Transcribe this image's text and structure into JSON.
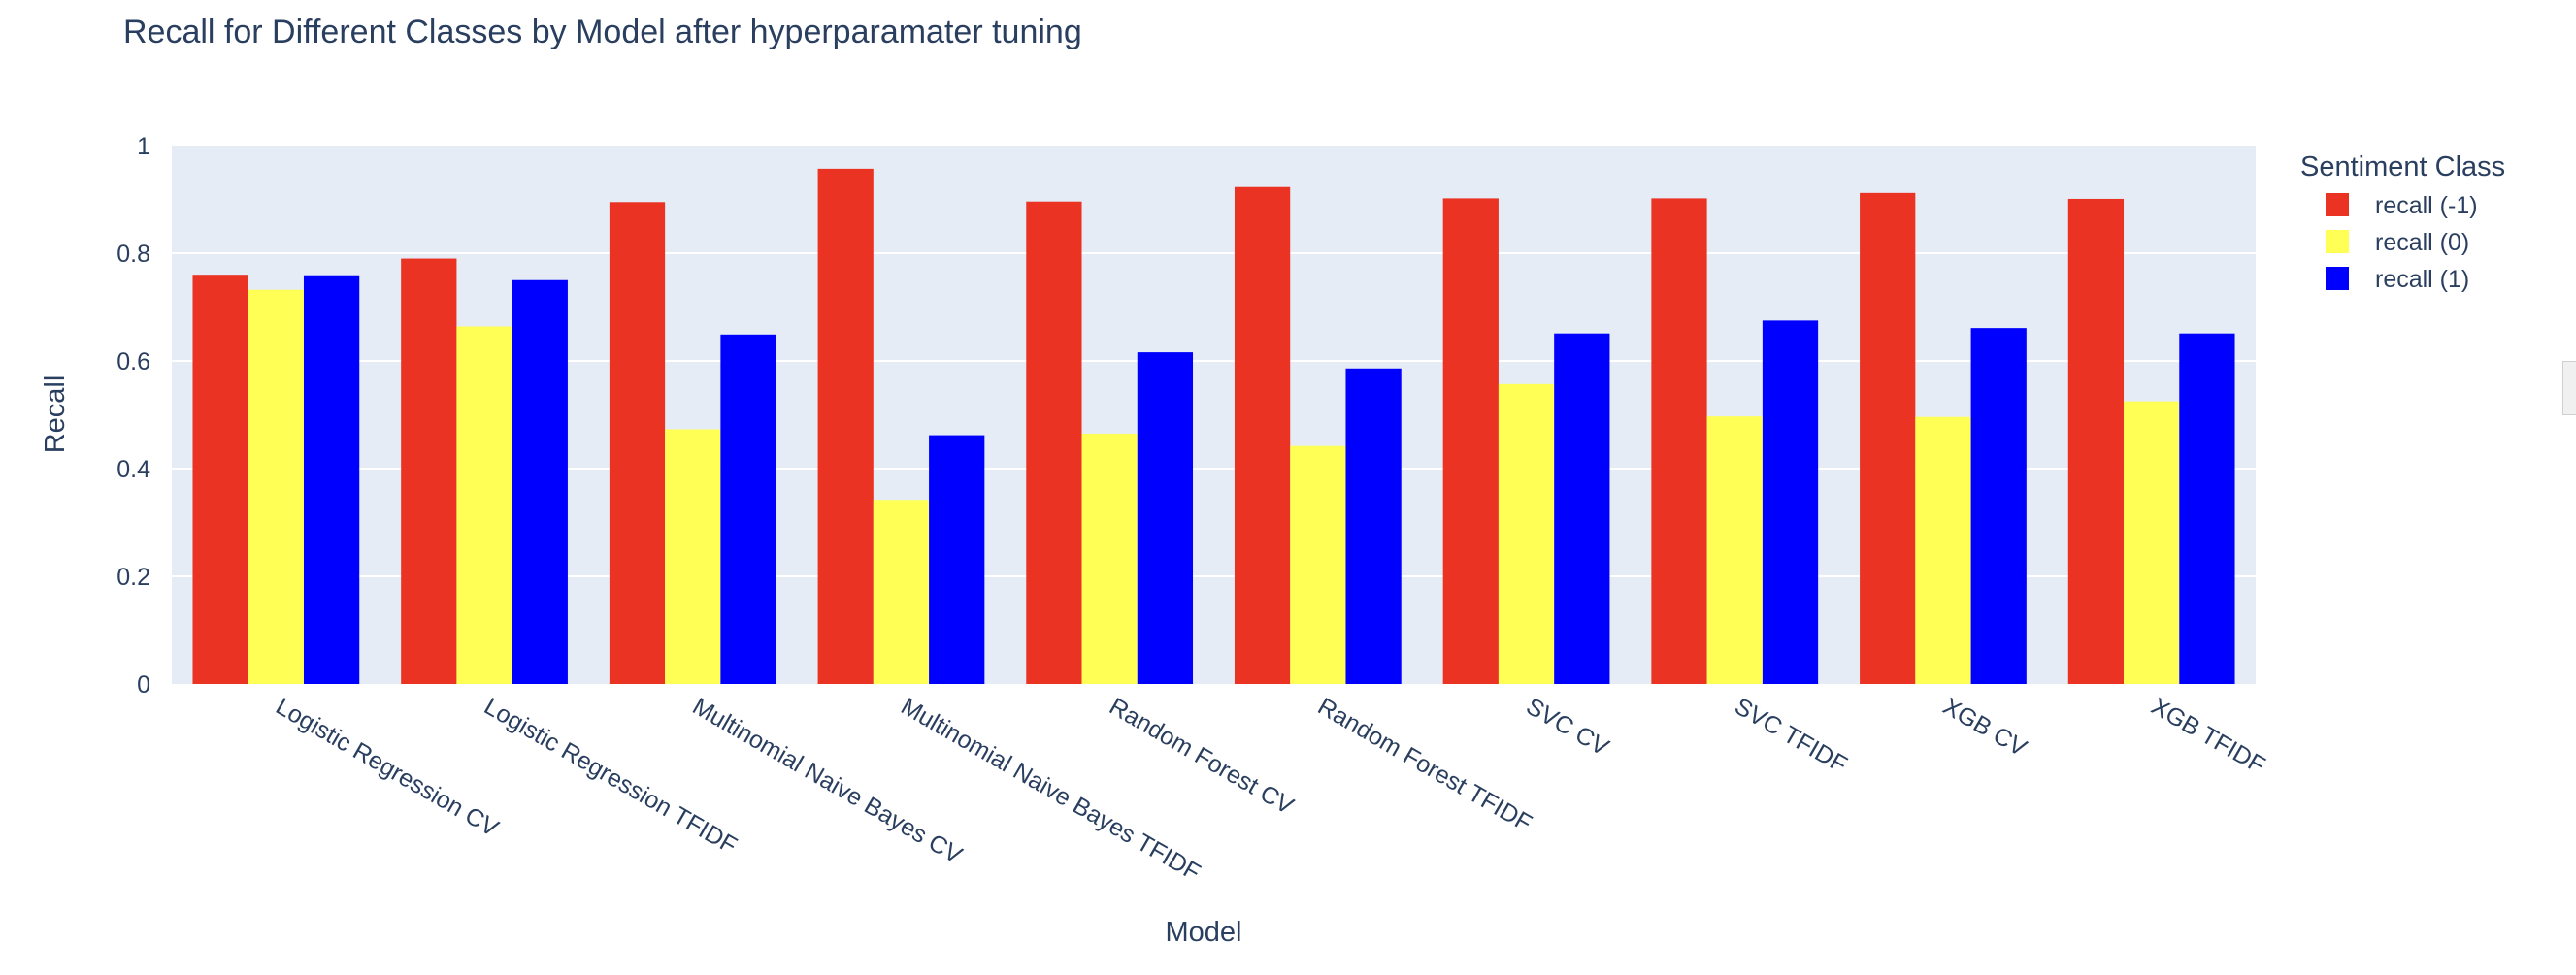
{
  "chart_data": {
    "type": "bar",
    "title": "Recall for Different Classes by Model after hyperparamater tuning",
    "xlabel": "Model",
    "ylabel": "Recall",
    "ylim": [
      0,
      1
    ],
    "yticks": [
      "0",
      "0.2",
      "0.4",
      "0.6",
      "0.8",
      "1"
    ],
    "categories": [
      "Logistic Regression CV",
      "Logistic Regression TFIDF",
      "Multinomial Naive Bayes CV",
      "Multinomial Naive Bayes TFIDF",
      "Random Forest CV",
      "Random Forest TFIDF",
      "SVC CV",
      "SVC TFIDF",
      "XGB CV",
      "XGB TFIDF"
    ],
    "legend_title": "Sentiment Class",
    "legend_position": "right",
    "grid": true,
    "series": [
      {
        "name": "recall (-1)",
        "color": "#ea3323",
        "values": [
          0.76,
          0.79,
          0.895,
          0.957,
          0.896,
          0.923,
          0.902,
          0.902,
          0.912,
          0.901
        ]
      },
      {
        "name": "recall (0)",
        "color": "#ffff55",
        "values": [
          0.732,
          0.664,
          0.473,
          0.342,
          0.465,
          0.442,
          0.557,
          0.497,
          0.496,
          0.525
        ]
      },
      {
        "name": "recall (1)",
        "color": "#0000ff",
        "values": [
          0.759,
          0.75,
          0.649,
          0.462,
          0.616,
          0.586,
          0.651,
          0.675,
          0.661,
          0.651
        ]
      }
    ]
  }
}
